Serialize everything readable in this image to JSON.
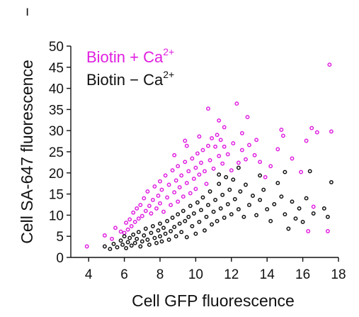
{
  "panel_mark": "ı",
  "chart_data": {
    "type": "scatter",
    "xlabel": "Cell GFP fluorescence",
    "ylabel": "Cell SA-647 fluorescence",
    "xlim": [
      3,
      18
    ],
    "ylim": [
      0,
      50
    ],
    "xticks": [
      4,
      6,
      8,
      10,
      12,
      14,
      16,
      18
    ],
    "yticks": [
      0,
      5,
      10,
      15,
      20,
      25,
      30,
      35,
      40,
      45,
      50
    ],
    "grid": false,
    "legend_position": "top-left",
    "series": [
      {
        "name_main": "Biotin + Ca",
        "name_sup": "2+",
        "color": "#e020e0",
        "marker": "open-circle",
        "points": [
          [
            3.9,
            2.6
          ],
          [
            4.9,
            5.2
          ],
          [
            5.3,
            4.4
          ],
          [
            5.5,
            7.0
          ],
          [
            5.8,
            6.1
          ],
          [
            6.0,
            5.8
          ],
          [
            6.1,
            8.2
          ],
          [
            6.2,
            6.6
          ],
          [
            6.3,
            9.0
          ],
          [
            6.4,
            7.4
          ],
          [
            6.5,
            10.6
          ],
          [
            6.6,
            8.4
          ],
          [
            6.7,
            11.6
          ],
          [
            6.8,
            9.2
          ],
          [
            6.9,
            12.4
          ],
          [
            7.0,
            9.8
          ],
          [
            7.1,
            14.0
          ],
          [
            7.2,
            11.0
          ],
          [
            7.3,
            15.6
          ],
          [
            7.4,
            12.2
          ],
          [
            7.5,
            10.4
          ],
          [
            7.6,
            13.6
          ],
          [
            7.7,
            16.8
          ],
          [
            7.8,
            11.6
          ],
          [
            7.9,
            14.6
          ],
          [
            8.0,
            18.0
          ],
          [
            8.0,
            12.8
          ],
          [
            8.1,
            16.0
          ],
          [
            8.2,
            10.8
          ],
          [
            8.3,
            19.4
          ],
          [
            8.4,
            14.2
          ],
          [
            8.5,
            17.2
          ],
          [
            8.6,
            12.4
          ],
          [
            8.7,
            20.6
          ],
          [
            8.8,
            15.4
          ],
          [
            8.9,
            18.2
          ],
          [
            9.0,
            13.2
          ],
          [
            9.0,
            21.6
          ],
          [
            9.1,
            16.6
          ],
          [
            9.2,
            19.4
          ],
          [
            9.3,
            14.4
          ],
          [
            9.4,
            22.6
          ],
          [
            9.5,
            17.6
          ],
          [
            9.6,
            20.4
          ],
          [
            9.7,
            15.2
          ],
          [
            9.8,
            23.4
          ],
          [
            9.9,
            18.6
          ],
          [
            10.0,
            21.2
          ],
          [
            10.0,
            16.2
          ],
          [
            10.1,
            24.6
          ],
          [
            10.2,
            19.6
          ],
          [
            10.3,
            22.4
          ],
          [
            10.4,
            25.4
          ],
          [
            10.5,
            20.4
          ],
          [
            10.6,
            17.4
          ],
          [
            10.7,
            26.4
          ],
          [
            10.8,
            23.0
          ],
          [
            10.9,
            28.2
          ],
          [
            11.0,
            21.0
          ],
          [
            11.1,
            26.2
          ],
          [
            11.2,
            29.0
          ],
          [
            11.3,
            24.0
          ],
          [
            11.4,
            27.8
          ],
          [
            11.5,
            22.2
          ],
          [
            11.6,
            26.2
          ],
          [
            11.8,
            24.4
          ],
          [
            12.0,
            20.6
          ],
          [
            12.1,
            27.0
          ],
          [
            12.3,
            36.4
          ],
          [
            12.4,
            22.4
          ],
          [
            12.6,
            25.4
          ],
          [
            12.8,
            23.2
          ],
          [
            13.0,
            26.6
          ],
          [
            13.3,
            24.2
          ],
          [
            13.6,
            22.6
          ],
          [
            13.9,
            19.0
          ],
          [
            14.2,
            21.6
          ],
          [
            14.6,
            25.6
          ],
          [
            14.8,
            30.2
          ],
          [
            14.9,
            28.8
          ],
          [
            15.4,
            23.4
          ],
          [
            15.9,
            20.2
          ],
          [
            16.2,
            27.6
          ],
          [
            16.5,
            30.6
          ],
          [
            16.8,
            29.6
          ],
          [
            16.6,
            12.0
          ],
          [
            17.5,
            45.6
          ],
          [
            17.6,
            29.8
          ],
          [
            17.4,
            6.2
          ],
          [
            16.3,
            6.2
          ],
          [
            12.6,
            29.4
          ],
          [
            13.4,
            27.8
          ],
          [
            10.7,
            35.2
          ],
          [
            11.3,
            32.4
          ],
          [
            9.5,
            26.4
          ],
          [
            8.8,
            24.2
          ],
          [
            9.4,
            27.6
          ],
          [
            10.2,
            28.6
          ],
          [
            11.6,
            30.8
          ],
          [
            12.9,
            33.2
          ]
        ]
      },
      {
        "name_main": "Biotin − Ca",
        "name_sup": "2+",
        "color": "#111111",
        "marker": "open-circle",
        "points": [
          [
            4.9,
            2.6
          ],
          [
            5.2,
            2.0
          ],
          [
            5.4,
            3.2
          ],
          [
            5.6,
            2.4
          ],
          [
            5.8,
            4.0
          ],
          [
            5.9,
            3.0
          ],
          [
            6.0,
            5.0
          ],
          [
            6.1,
            2.2
          ],
          [
            6.2,
            3.6
          ],
          [
            6.3,
            4.6
          ],
          [
            6.4,
            2.8
          ],
          [
            6.5,
            5.4
          ],
          [
            6.6,
            3.4
          ],
          [
            6.7,
            4.4
          ],
          [
            6.8,
            6.0
          ],
          [
            6.9,
            2.6
          ],
          [
            7.0,
            3.8
          ],
          [
            7.1,
            5.2
          ],
          [
            7.2,
            6.8
          ],
          [
            7.3,
            4.2
          ],
          [
            7.4,
            3.0
          ],
          [
            7.5,
            5.8
          ],
          [
            7.6,
            7.4
          ],
          [
            7.7,
            4.6
          ],
          [
            7.8,
            3.4
          ],
          [
            7.9,
            6.4
          ],
          [
            8.0,
            8.0
          ],
          [
            8.0,
            5.0
          ],
          [
            8.1,
            3.8
          ],
          [
            8.2,
            7.0
          ],
          [
            8.3,
            5.6
          ],
          [
            8.4,
            8.6
          ],
          [
            8.5,
            4.2
          ],
          [
            8.6,
            6.2
          ],
          [
            8.7,
            9.4
          ],
          [
            8.8,
            7.2
          ],
          [
            8.9,
            5.0
          ],
          [
            9.0,
            10.2
          ],
          [
            9.1,
            8.0
          ],
          [
            9.2,
            6.0
          ],
          [
            9.3,
            11.0
          ],
          [
            9.4,
            8.6
          ],
          [
            9.5,
            4.8
          ],
          [
            9.6,
            9.6
          ],
          [
            9.7,
            12.2
          ],
          [
            9.8,
            7.4
          ],
          [
            9.9,
            10.4
          ],
          [
            10.0,
            5.6
          ],
          [
            10.1,
            13.0
          ],
          [
            10.2,
            8.4
          ],
          [
            10.3,
            11.2
          ],
          [
            10.4,
            14.2
          ],
          [
            10.5,
            6.4
          ],
          [
            10.6,
            9.6
          ],
          [
            10.7,
            12.4
          ],
          [
            10.8,
            15.6
          ],
          [
            10.9,
            7.8
          ],
          [
            11.0,
            10.8
          ],
          [
            11.1,
            13.6
          ],
          [
            11.2,
            8.6
          ],
          [
            11.3,
            17.4
          ],
          [
            11.4,
            11.6
          ],
          [
            11.5,
            14.8
          ],
          [
            11.6,
            9.4
          ],
          [
            11.7,
            19.0
          ],
          [
            11.8,
            12.6
          ],
          [
            11.9,
            16.0
          ],
          [
            12.0,
            10.2
          ],
          [
            12.1,
            18.4
          ],
          [
            12.2,
            13.8
          ],
          [
            12.4,
            11.4
          ],
          [
            12.5,
            15.6
          ],
          [
            12.7,
            9.6
          ],
          [
            12.8,
            17.2
          ],
          [
            13.0,
            12.4
          ],
          [
            13.2,
            14.6
          ],
          [
            13.4,
            10.0
          ],
          [
            13.6,
            13.6
          ],
          [
            13.8,
            16.0
          ],
          [
            14.0,
            11.4
          ],
          [
            14.2,
            8.6
          ],
          [
            14.4,
            12.6
          ],
          [
            14.6,
            17.6
          ],
          [
            14.8,
            14.4
          ],
          [
            15.0,
            10.2
          ],
          [
            15.2,
            6.8
          ],
          [
            15.4,
            13.2
          ],
          [
            15.6,
            9.2
          ],
          [
            15.8,
            11.6
          ],
          [
            16.0,
            8.4
          ],
          [
            16.2,
            14.0
          ],
          [
            16.4,
            20.4
          ],
          [
            16.6,
            10.4
          ],
          [
            17.2,
            11.6
          ],
          [
            17.4,
            9.6
          ],
          [
            17.6,
            17.8
          ],
          [
            15.0,
            20.2
          ],
          [
            13.6,
            19.4
          ],
          [
            12.4,
            21.2
          ],
          [
            11.3,
            19.6
          ]
        ]
      }
    ]
  }
}
